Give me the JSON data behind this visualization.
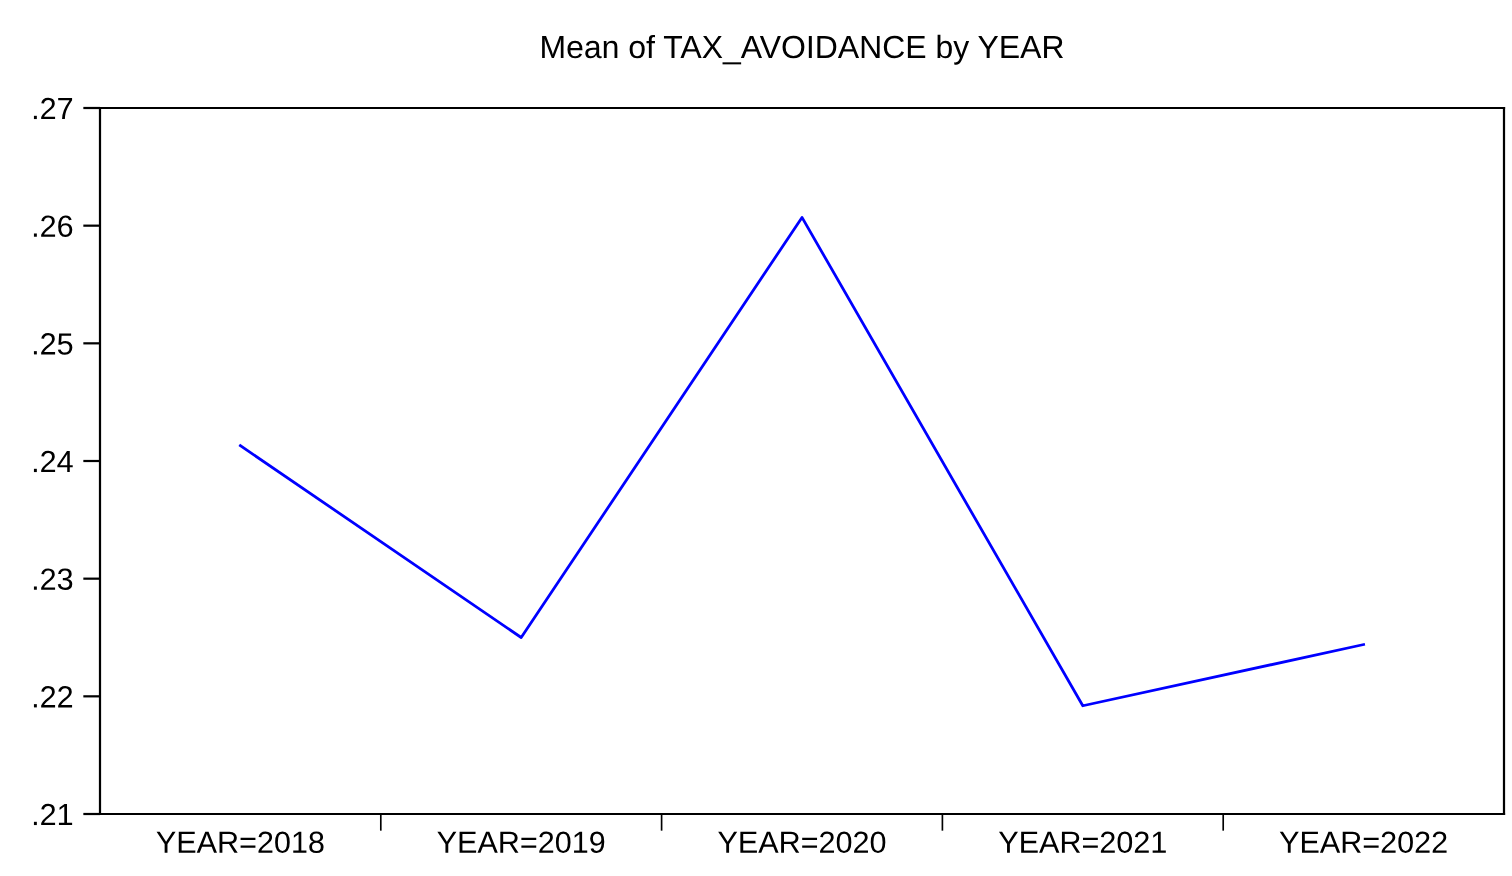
{
  "chart_data": {
    "type": "line",
    "title": "Mean of TAX_AVOIDANCE by YEAR",
    "categories": [
      "YEAR=2018",
      "YEAR=2019",
      "YEAR=2020",
      "YEAR=2021",
      "YEAR=2022"
    ],
    "series": [
      {
        "color": "#0000ff",
        "values": [
          0.2413,
          0.225,
          0.2607,
          0.2192,
          0.2244
        ]
      }
    ],
    "ylim": [
      0.21,
      0.27
    ],
    "yticks": [
      {
        "value": 0.21,
        "label": ".21"
      },
      {
        "value": 0.22,
        "label": ".22"
      },
      {
        "value": 0.23,
        "label": ".23"
      },
      {
        "value": 0.24,
        "label": ".24"
      },
      {
        "value": 0.25,
        "label": ".25"
      },
      {
        "value": 0.26,
        "label": ".26"
      },
      {
        "value": 0.27,
        "label": ".27"
      }
    ],
    "grid": false,
    "marker": "none",
    "line_style": "solid"
  }
}
